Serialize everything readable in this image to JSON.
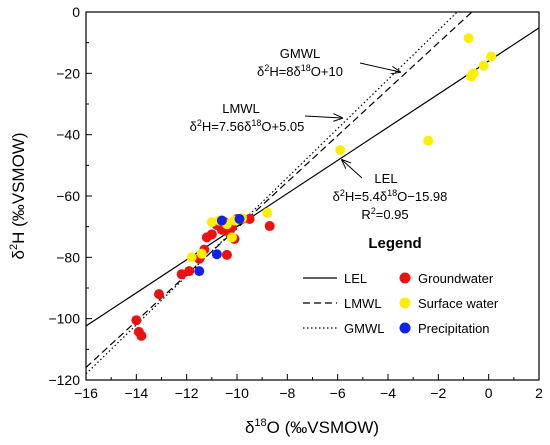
{
  "chart_data": {
    "type": "scatter",
    "xlabel_base": "δ",
    "xlabel_sup": "18",
    "xlabel_rest": "O (‰VSMOW)",
    "ylabel_base": "δ",
    "ylabel_sup": "2",
    "ylabel_rest": "H (‰VSMOW)",
    "xlim": [
      -16,
      2
    ],
    "ylim": [
      -120,
      0
    ],
    "xticks": [
      -16,
      -14,
      -12,
      -10,
      -8,
      -6,
      -4,
      -2,
      0,
      2
    ],
    "yticks": [
      -120,
      -100,
      -80,
      -60,
      -40,
      -20,
      0
    ],
    "grid": false,
    "legend_title": "Legend",
    "lines": [
      {
        "name": "LEL",
        "style": "solid",
        "slope": 5.4,
        "intercept": -15.98
      },
      {
        "name": "LMWL",
        "style": "dashed",
        "slope": 7.56,
        "intercept": 5.05
      },
      {
        "name": "GMWL",
        "style": "dotted",
        "slope": 8,
        "intercept": 10
      }
    ],
    "series": [
      {
        "name": "Groundwater",
        "color": "#ee1111",
        "points": [
          {
            "x": -14.0,
            "y": -100.5
          },
          {
            "x": -13.9,
            "y": -104.3
          },
          {
            "x": -13.8,
            "y": -105.6
          },
          {
            "x": -13.1,
            "y": -92.0
          },
          {
            "x": -12.2,
            "y": -85.5
          },
          {
            "x": -11.9,
            "y": -84.5
          },
          {
            "x": -11.5,
            "y": -80.5
          },
          {
            "x": -11.3,
            "y": -77.5
          },
          {
            "x": -11.2,
            "y": -73.5
          },
          {
            "x": -11.0,
            "y": -72.5
          },
          {
            "x": -10.8,
            "y": -69.5
          },
          {
            "x": -10.6,
            "y": -71.0
          },
          {
            "x": -10.4,
            "y": -79.2
          },
          {
            "x": -10.3,
            "y": -72.0
          },
          {
            "x": -10.2,
            "y": -70.0
          },
          {
            "x": -10.1,
            "y": -74.0
          },
          {
            "x": -10.0,
            "y": -67.5
          },
          {
            "x": -9.8,
            "y": -67.5
          },
          {
            "x": -9.5,
            "y": -67.5
          },
          {
            "x": -8.7,
            "y": -69.8
          },
          {
            "x": -10.5,
            "y": -68.5
          }
        ]
      },
      {
        "name": "Surface water",
        "color": "#ffee00",
        "points": [
          {
            "x": -11.8,
            "y": -80.0
          },
          {
            "x": -11.4,
            "y": -78.8
          },
          {
            "x": -11.0,
            "y": -68.5
          },
          {
            "x": -10.7,
            "y": -68.0
          },
          {
            "x": -10.4,
            "y": -69.2
          },
          {
            "x": -10.2,
            "y": -73.5
          },
          {
            "x": -10.1,
            "y": -68.0
          },
          {
            "x": -9.8,
            "y": -67.2
          },
          {
            "x": -8.8,
            "y": -65.5
          },
          {
            "x": -5.9,
            "y": -45.0
          },
          {
            "x": -2.4,
            "y": -42.0
          },
          {
            "x": -0.8,
            "y": -8.5
          },
          {
            "x": -0.7,
            "y": -21.0
          },
          {
            "x": -0.6,
            "y": -20.0
          },
          {
            "x": -0.2,
            "y": -17.5
          },
          {
            "x": 0.1,
            "y": -14.5
          }
        ]
      },
      {
        "name": "Precipitation",
        "color": "#1122ee",
        "points": [
          {
            "x": -11.5,
            "y": -84.5
          },
          {
            "x": -10.8,
            "y": -79.0
          },
          {
            "x": -10.6,
            "y": -68.0
          },
          {
            "x": -9.9,
            "y": -67.5
          }
        ]
      }
    ],
    "annotations": [
      {
        "id": "gmwl",
        "label": "GMWL",
        "eq_base": "δ",
        "eq_sup1": "2",
        "eq_mid": "H=8δ",
        "eq_sup2": "18",
        "eq_end": "O+10"
      },
      {
        "id": "lmwl",
        "label": "LMWL",
        "eq_base": "δ",
        "eq_sup1": "2",
        "eq_mid": "H=7.56δ",
        "eq_sup2": "18",
        "eq_end": "O+5.05"
      },
      {
        "id": "lel",
        "label": "LEL",
        "eq_base": "δ",
        "eq_sup1": "2",
        "eq_mid": "H=5.4δ",
        "eq_sup2": "18",
        "eq_end": "O−15.98",
        "r2_base": "R",
        "r2_sup": "2",
        "r2_end": "=0.95"
      }
    ]
  }
}
